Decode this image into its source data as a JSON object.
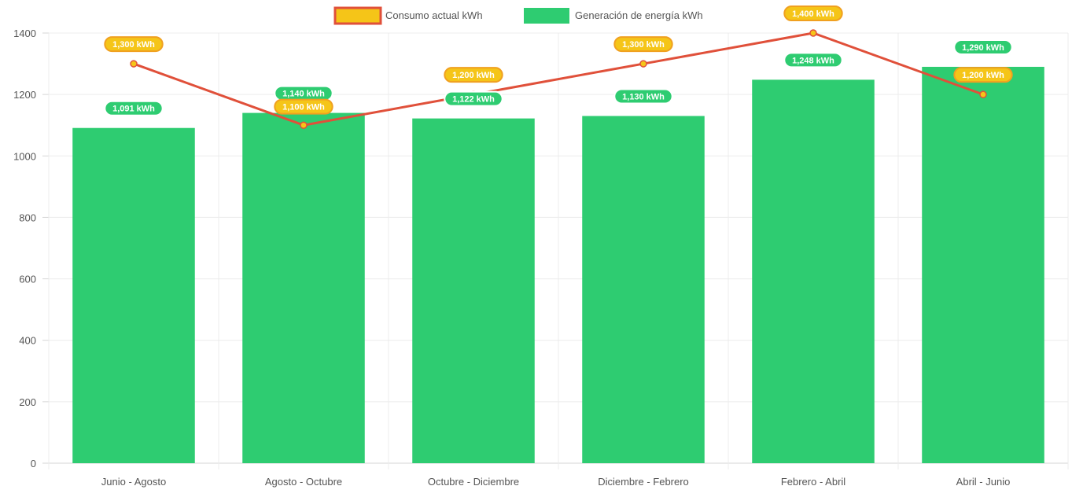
{
  "chart_data": {
    "type": "bar",
    "categories": [
      "Junio - Agosto",
      "Agosto - Octubre",
      "Octubre - Diciembre",
      "Diciembre - Febrero",
      "Febrero - Abril",
      "Abril - Junio"
    ],
    "series": [
      {
        "name": "Consumo actual kWh",
        "type": "line",
        "values": [
          1300,
          1100,
          1200,
          1300,
          1400,
          1200
        ],
        "labels": [
          "1,300 kWh",
          "1,100 kWh",
          "1,200 kWh",
          "1,300 kWh",
          "1,400 kWh",
          "1,200 kWh"
        ],
        "color": "#e0503a",
        "fill": "#f5c518"
      },
      {
        "name": "Generación de energía kWh",
        "type": "bar",
        "values": [
          1091,
          1140,
          1122,
          1130,
          1248,
          1290
        ],
        "labels": [
          "1,091 kWh",
          "1,140 kWh",
          "1,122 kWh",
          "1,130 kWh",
          "1,248 kWh",
          "1,290 kWh"
        ],
        "color": "#2ecc71"
      }
    ],
    "title": "",
    "xlabel": "",
    "ylabel": "",
    "ylim": [
      0,
      1400
    ],
    "yticks": [
      "0",
      "200",
      "400",
      "600",
      "800",
      "1000",
      "1200",
      "1400"
    ],
    "grid": true,
    "legend_position": "top"
  }
}
